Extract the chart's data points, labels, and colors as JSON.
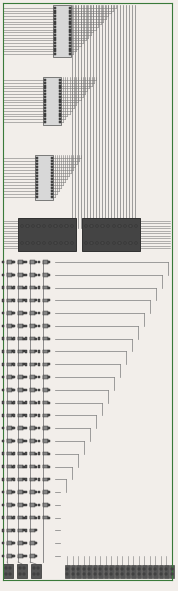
{
  "bg_color": "#f2eeea",
  "line_color": "#7a7a7a",
  "dark_color": "#303030",
  "green_color": "#3a7a3a",
  "purple_color": "#7a5a9a",
  "fig_width": 1.78,
  "fig_height": 5.91,
  "dpi": 100,
  "connector_fill": "#d8d8d8",
  "connector_edge": "#505050",
  "dark_block_fill": "#444444",
  "pin_fill": "#555555",
  "pin_edge": "#222222",
  "small_comp_fill": "#888888",
  "small_comp_edge": "#303030",
  "bottom_conn_fill": "#555555"
}
